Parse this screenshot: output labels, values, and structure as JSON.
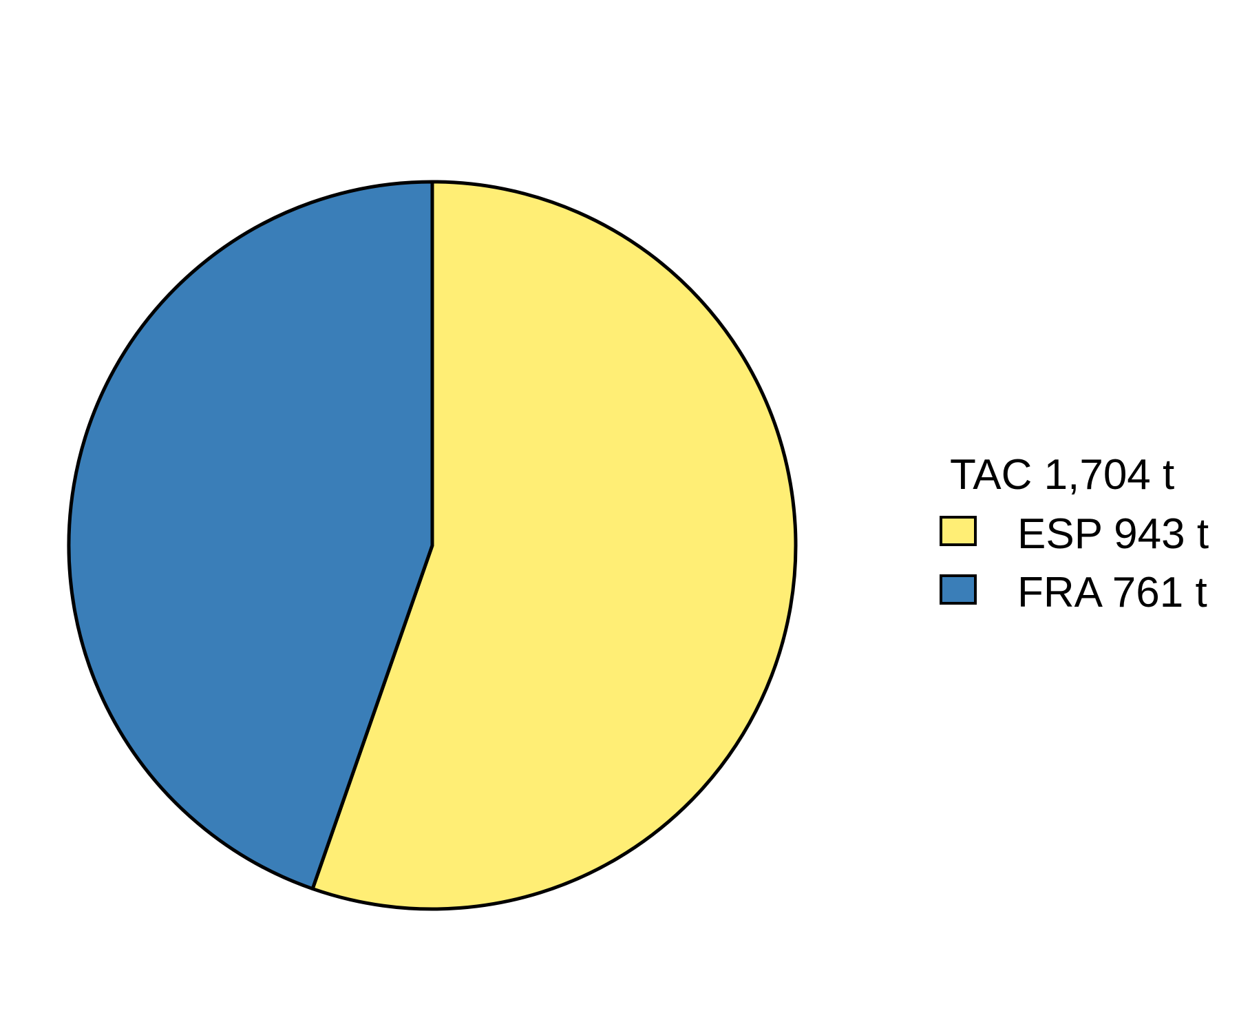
{
  "chart_data": {
    "type": "pie",
    "title": "",
    "legend_title": "TAC 1,704 t",
    "legend_position": "right",
    "start_angle": "12 o'clock",
    "direction": "clockwise",
    "slices": [
      {
        "label": "ESP 943 t",
        "category": "ESP",
        "value": 943,
        "unit": "t",
        "color": "#FFEE75"
      },
      {
        "label": "FRA 761 t",
        "category": "FRA",
        "value": 761,
        "unit": "t",
        "color": "#3A7EB8"
      }
    ],
    "outline_color": "#000000"
  }
}
